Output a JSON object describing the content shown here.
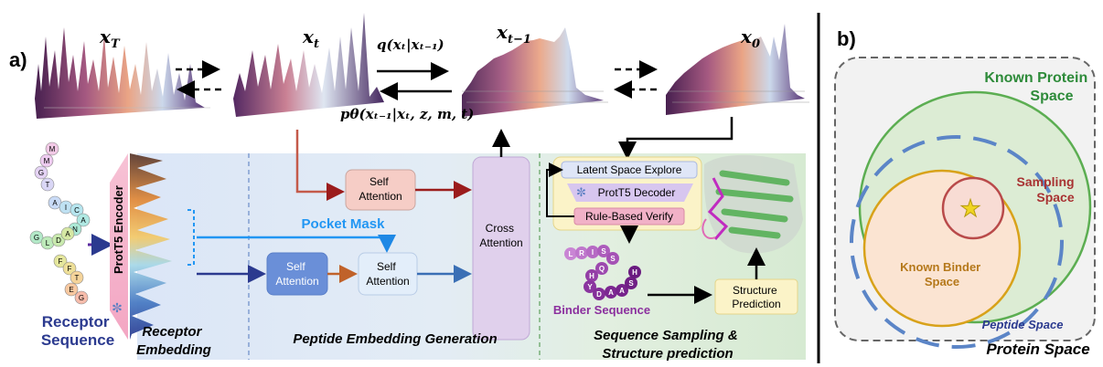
{
  "panel_a": {
    "label": "a)",
    "states": [
      {
        "base": "x",
        "sub": "T"
      },
      {
        "base": "x",
        "sub": "t"
      },
      {
        "base": "x",
        "sub": "t−1"
      },
      {
        "base": "x",
        "sub": "0"
      }
    ],
    "forward_process": "q(xₜ|xₜ₋₁)",
    "reverse_process": "pθ(xₜ₋₁|xₜ, z, m, t)",
    "receptor_residues": [
      "M",
      "M",
      "G",
      "T",
      "A",
      "I",
      "C",
      "A",
      "N",
      "G",
      "L",
      "D",
      "A",
      "F",
      "F",
      "T",
      "E",
      "G"
    ],
    "encoder_label": "ProtT5 Encoder",
    "receptor_sequence": [
      "Receptor",
      "Sequence"
    ],
    "receptor_embedding": [
      "Receptor",
      "Embedding"
    ],
    "pocket_mask": "Pocket Mask",
    "self_attention_top": [
      "Self",
      "Attention"
    ],
    "self_attention_left": [
      "Self",
      "Attention"
    ],
    "self_attention_right": [
      "Self",
      "Attention"
    ],
    "cross_attention": [
      "Cross",
      "Attention"
    ],
    "peptide_embedding_generation": "Peptide Embedding Generation",
    "latent_space_explore": "Latent Space Explore",
    "prott5_decoder": "ProtT5 Decoder",
    "rule_based_verify": "Rule-Based Verify",
    "binder_residues": [
      "L",
      "R",
      "I",
      "S",
      "S",
      "Q",
      "H",
      "Y",
      "D",
      "A",
      "A",
      "S",
      "H"
    ],
    "binder_sequence": "Binder Sequence",
    "structure_prediction": [
      "Structure",
      "Prediction"
    ],
    "sampling_caption": [
      "Sequence Sampling &",
      "Structure prediction"
    ]
  },
  "panel_b": {
    "label": "b)",
    "known_protein_space": [
      "Known Protein",
      "Space"
    ],
    "sampling_space": [
      "Sampling",
      "Space"
    ],
    "known_binder_space": [
      "Known Binder",
      "Space"
    ],
    "peptide_space": "Peptide Space",
    "protein_space": "Protein Space"
  },
  "colors": {
    "receptor_blue": "#2b3a8f",
    "pocket_blue": "#2196f3",
    "known_protein_green": "#2e8b3a",
    "sampling_red": "#a83232",
    "binder_orange": "#d4a017",
    "binder_purple": "#8b2f9e"
  }
}
